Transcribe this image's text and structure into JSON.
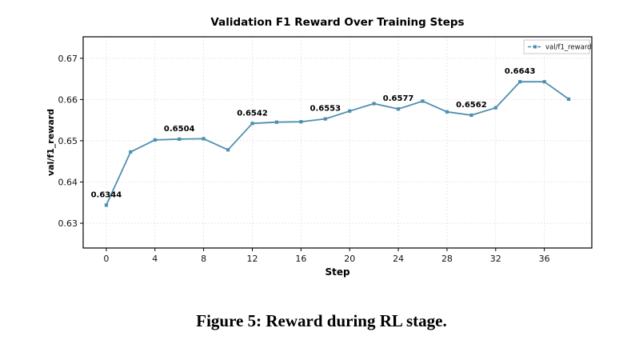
{
  "caption": "Figure 5: Reward during RL stage.",
  "chart_data": {
    "type": "line",
    "title": "Validation F1 Reward Over Training Steps",
    "xlabel": "Step",
    "ylabel": "val/f1_reward",
    "legend": [
      "val/f1_reward"
    ],
    "legend_position": "upper right",
    "x": [
      0,
      2,
      4,
      6,
      8,
      10,
      12,
      14,
      16,
      18,
      20,
      22,
      24,
      26,
      28,
      30,
      32,
      34,
      36,
      38
    ],
    "y": [
      0.6344,
      0.6473,
      0.6502,
      0.6504,
      0.6505,
      0.6478,
      0.6542,
      0.6545,
      0.6546,
      0.6553,
      0.6572,
      0.659,
      0.6577,
      0.6596,
      0.657,
      0.6562,
      0.658,
      0.6643,
      0.6643,
      0.6601
    ],
    "annotations": [
      {
        "x": 0,
        "y": 0.6344,
        "label": "0.6344"
      },
      {
        "x": 6,
        "y": 0.6504,
        "label": "0.6504"
      },
      {
        "x": 12,
        "y": 0.6542,
        "label": "0.6542"
      },
      {
        "x": 18,
        "y": 0.6553,
        "label": "0.6553"
      },
      {
        "x": 24,
        "y": 0.6577,
        "label": "0.6577"
      },
      {
        "x": 30,
        "y": 0.6562,
        "label": "0.6562"
      },
      {
        "x": 34,
        "y": 0.6643,
        "label": "0.6643"
      }
    ],
    "xticks": [
      0,
      4,
      8,
      12,
      16,
      20,
      24,
      28,
      32,
      36
    ],
    "yticks": [
      0.63,
      0.64,
      0.65,
      0.66,
      0.67
    ],
    "xlim": [
      -1.9,
      39.9
    ],
    "ylim": [
      0.624,
      0.6752
    ],
    "grid": true,
    "line_color": "#4e8fb0",
    "grid_color": "#d9d9d9",
    "axis_color": "#000000"
  }
}
